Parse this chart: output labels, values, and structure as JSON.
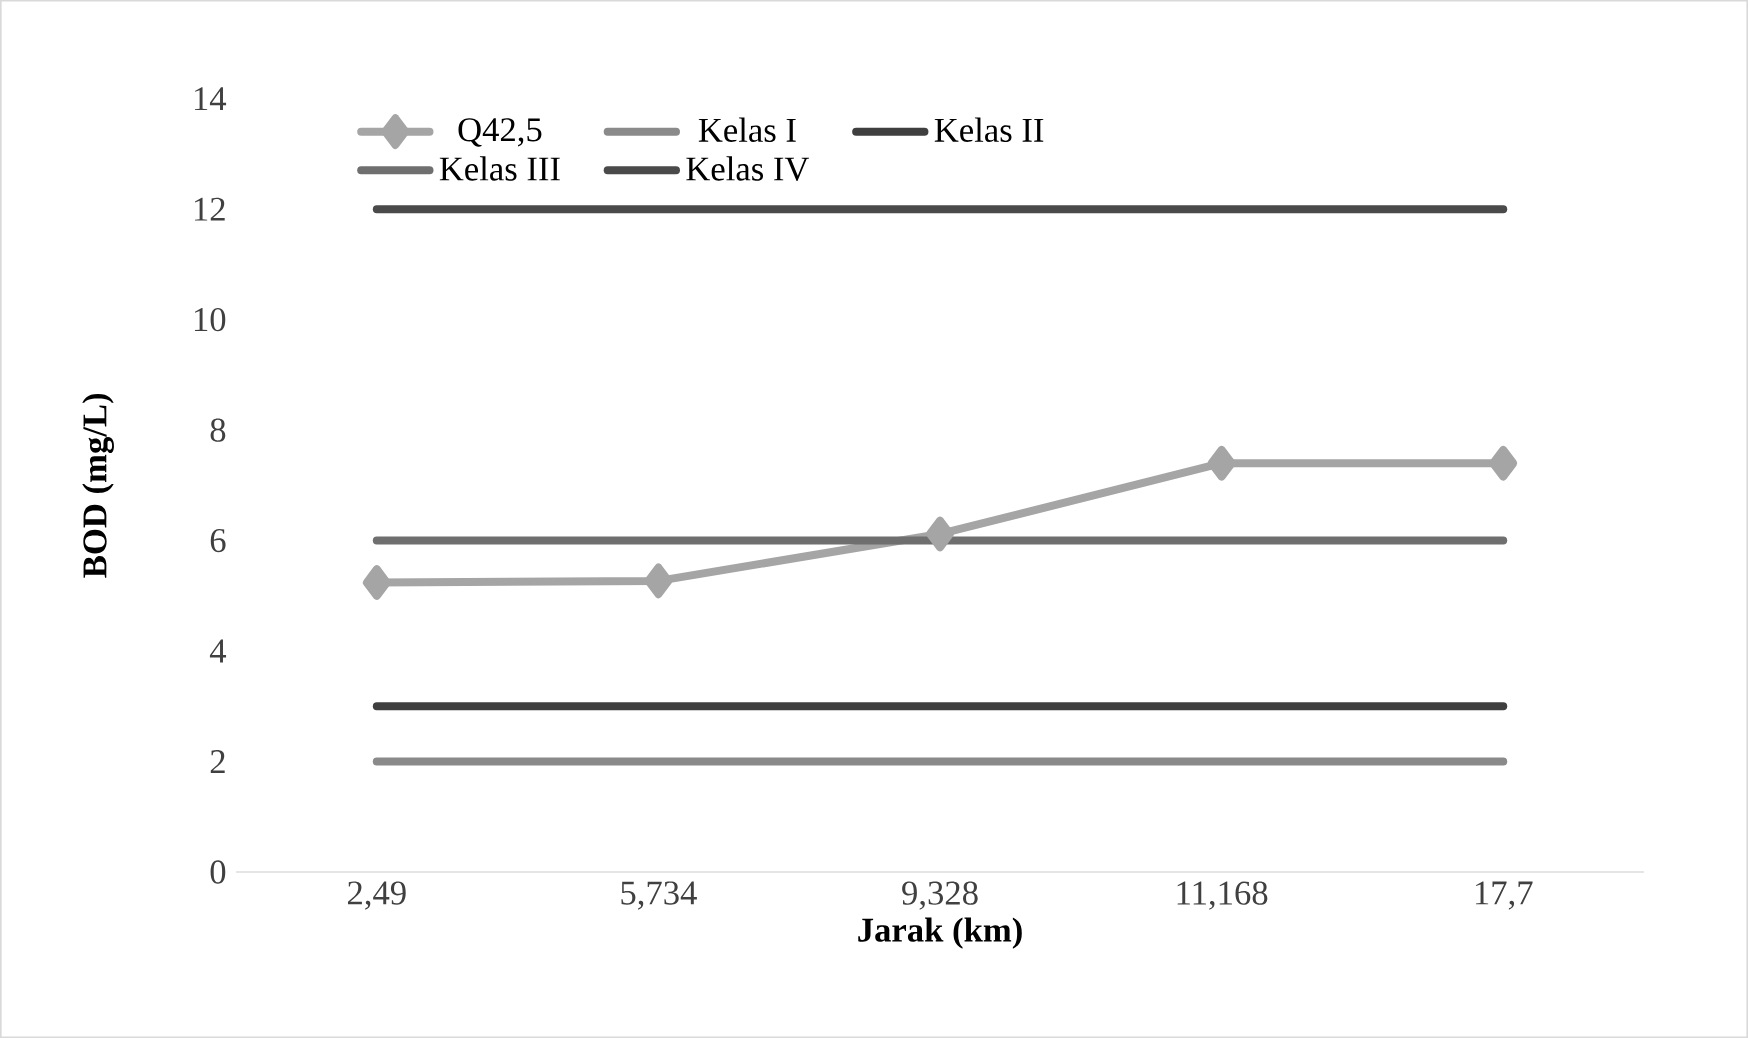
{
  "chart_data": {
    "type": "line",
    "xlabel": "Jarak (km)",
    "ylabel": "BOD (mg/L)",
    "categories": [
      "2,49",
      "5,734",
      "9,328",
      "11,168",
      "17,7"
    ],
    "series": [
      {
        "name": "Q42,5",
        "color": "#a5a5a5",
        "values": [
          5.24,
          5.27,
          6.12,
          7.4,
          7.4
        ],
        "marker": "diamond"
      },
      {
        "name": "Kelas I",
        "color": "#8a8a8a",
        "values": [
          2,
          2,
          2,
          2,
          2
        ],
        "marker": "none"
      },
      {
        "name": "Kelas II",
        "color": "#3f3f3f",
        "values": [
          3,
          3,
          3,
          3,
          3
        ],
        "marker": "none"
      },
      {
        "name": "Kelas III",
        "color": "#6f6f6f",
        "values": [
          6,
          6,
          6,
          6,
          6
        ],
        "marker": "none"
      },
      {
        "name": "Kelas IV",
        "color": "#4a4a4a",
        "values": [
          12,
          12,
          12,
          12,
          12
        ],
        "marker": "none"
      }
    ],
    "ylim": [
      0,
      14
    ],
    "yticks": [
      0,
      2,
      4,
      6,
      8,
      10,
      12,
      14
    ],
    "grid": false,
    "legend": "top",
    "line_style": "solid"
  }
}
